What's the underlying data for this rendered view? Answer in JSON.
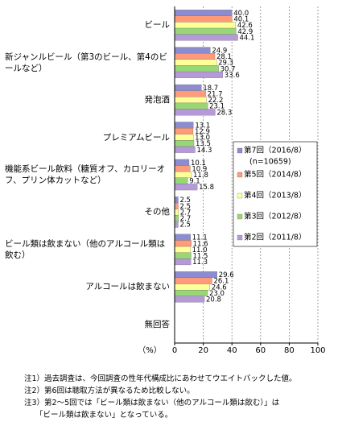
{
  "chart_data": {
    "type": "hbar",
    "categories": [
      "ビール",
      "新ジャンルビール（第3のビール、第4のビールなど）",
      "発泡酒",
      "プレミアムビール",
      "機能系ビール飲料（糖質オフ、カロリーオフ、プリン体カットなど）",
      "その他",
      "ビール類は飲まない（他のアルコール類は飲む）",
      "アルコールは飲まない",
      "無回答"
    ],
    "series": [
      {
        "name": "第7回（2016/8）",
        "color": "#8c8cd0",
        "values": [
          40.0,
          24.9,
          18.7,
          13.1,
          10.1,
          2.5,
          11.1,
          29.6,
          null
        ],
        "value_labels": [
          "40.0",
          "24.9",
          "18.7",
          "13.1",
          "10.1",
          "2.5",
          "11.1",
          "29.6",
          null
        ]
      },
      {
        "name": "第5回（2014/8）",
        "color": "#ff9a7a",
        "values": [
          40.1,
          28.1,
          21.7,
          12.9,
          10.9,
          2.5,
          11.6,
          26.1,
          null
        ],
        "value_labels": [
          "40.1",
          "28.1",
          "21.7",
          "12.9",
          "10.9",
          "2.5",
          "11.6",
          "26.1",
          null
        ]
      },
      {
        "name": "第4回（2013/8）",
        "color": "#ffff99",
        "values": [
          42.6,
          29.3,
          22.2,
          13.0,
          11.8,
          2.7,
          11.0,
          24.6,
          null
        ],
        "value_labels": [
          "42.6",
          "29.3",
          "22.2",
          "13.0",
          "11.8",
          "2.7",
          "11.0",
          "24.6",
          null
        ]
      },
      {
        "name": "第3回（2012/8）",
        "color": "#99d675",
        "values": [
          42.9,
          30.7,
          23.1,
          13.5,
          9.1,
          2.7,
          11.5,
          23.0,
          null
        ],
        "value_labels": [
          "42.9",
          "30.7",
          "23.1",
          "13.5",
          "9.1",
          "2.7",
          "11.5",
          "23.0",
          null
        ]
      },
      {
        "name": "第2回（2011/8）",
        "color": "#b699d9",
        "values": [
          44.1,
          33.6,
          28.3,
          14.3,
          15.8,
          2.5,
          11.3,
          20.8,
          null
        ],
        "value_labels": [
          "44.1",
          "33.6",
          "28.3",
          "14.3",
          "15.8",
          "2.5",
          "11.3",
          "20.8",
          null
        ]
      }
    ],
    "legend_note": "(n=10659)",
    "xlabel": "（%）",
    "xlim": [
      0,
      100
    ],
    "xticks": [
      0,
      20,
      40,
      60,
      80,
      100
    ],
    "grid": true,
    "notes": [
      "注1）過去調査は、今回調査の性年代構成比にあわせてウエイトバックした値。",
      "注2）第6回は聴取方法が異なるため比較しない。",
      "注3）第2～5回では「ビール類は飲まない（他のアルコール類は飲む）」は",
      "「ビール類は飲まない」となっている。"
    ]
  }
}
